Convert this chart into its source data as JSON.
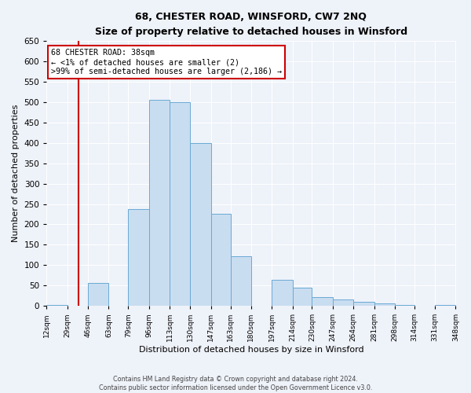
{
  "title": "68, CHESTER ROAD, WINSFORD, CW7 2NQ",
  "subtitle": "Size of property relative to detached houses in Winsford",
  "xlabel": "Distribution of detached houses by size in Winsford",
  "ylabel": "Number of detached properties",
  "bar_color": "#c9ddf0",
  "bar_edge_color": "#6aaad4",
  "background_color": "#eef2f9",
  "grid_color": "#ffffff",
  "vline_color": "#cc0000",
  "vline_x": 38,
  "annotation_box_edge": "#cc0000",
  "annotation_lines": [
    "68 CHESTER ROAD: 38sqm",
    "← <1% of detached houses are smaller (2)",
    ">99% of semi-detached houses are larger (2,186) →"
  ],
  "bin_edges": [
    12,
    29,
    46,
    63,
    79,
    96,
    113,
    130,
    147,
    163,
    180,
    197,
    214,
    230,
    247,
    264,
    281,
    298,
    314,
    331,
    348
  ],
  "bin_counts": [
    2,
    0,
    57,
    0,
    238,
    505,
    500,
    400,
    225,
    122,
    0,
    63,
    45,
    22,
    15,
    10,
    5,
    2,
    0,
    2
  ],
  "tick_labels": [
    "12sqm",
    "29sqm",
    "46sqm",
    "63sqm",
    "79sqm",
    "96sqm",
    "113sqm",
    "130sqm",
    "147sqm",
    "163sqm",
    "180sqm",
    "197sqm",
    "214sqm",
    "230sqm",
    "247sqm",
    "264sqm",
    "281sqm",
    "298sqm",
    "314sqm",
    "331sqm",
    "348sqm"
  ],
  "ylim": [
    0,
    650
  ],
  "yticks": [
    0,
    50,
    100,
    150,
    200,
    250,
    300,
    350,
    400,
    450,
    500,
    550,
    600,
    650
  ],
  "footer_lines": [
    "Contains HM Land Registry data © Crown copyright and database right 2024.",
    "Contains public sector information licensed under the Open Government Licence v3.0."
  ]
}
